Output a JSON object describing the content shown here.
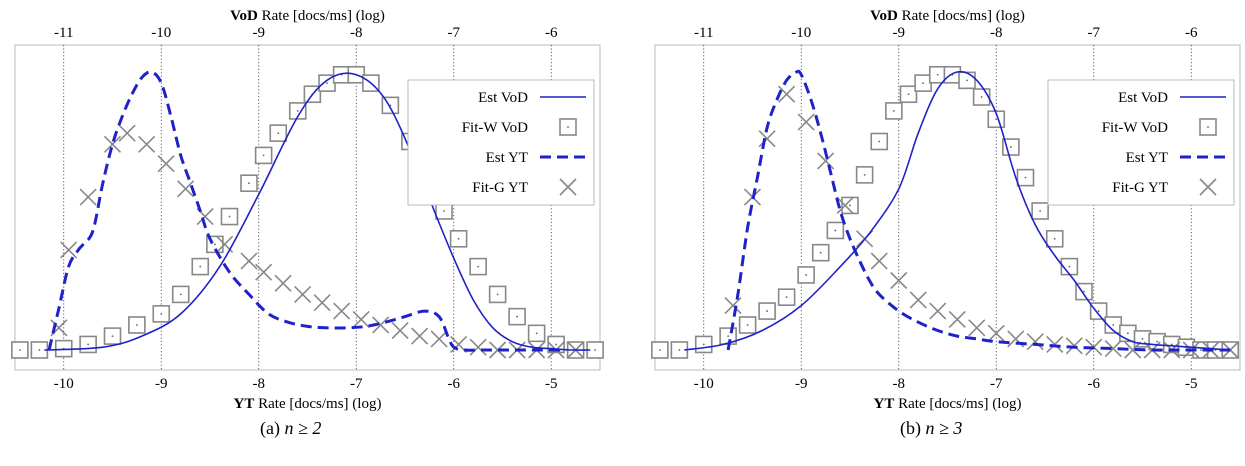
{
  "chart_data": [
    {
      "type": "line",
      "caption_label": "(a)",
      "caption_math": "n ≥ 2",
      "x_top_axis": {
        "bold": "VoD",
        "rest": "Rate [docs/ms] (log)",
        "ticks": [
          -11,
          -10,
          -9,
          -8,
          -7,
          -6
        ],
        "range": [
          -11.5,
          -5.5
        ]
      },
      "x_bottom_axis": {
        "bold": "YT",
        "rest": "Rate [docs/ms] (log)",
        "ticks": [
          -10,
          -9,
          -8,
          -7,
          -6,
          -5
        ],
        "range": [
          -10.5,
          -4.5
        ]
      },
      "y_range": [
        0,
        1
      ],
      "grid": "vertical dotted lines at bottom-axis ticks",
      "legend_position": "top-right",
      "series": [
        {
          "name": "Est VoD",
          "axis": "top",
          "style": "solid",
          "x": [
            -11.2,
            -10.6,
            -10.2,
            -9.8,
            -9.4,
            -9.0,
            -8.6,
            -8.3,
            -8.0,
            -7.7,
            -7.4,
            -7.2,
            -7.0,
            -6.8,
            -6.6,
            -6.4,
            -6.2,
            -6.0,
            -5.8,
            -5.6
          ],
          "y": [
            0.0,
            0.01,
            0.05,
            0.13,
            0.3,
            0.56,
            0.84,
            0.97,
            0.99,
            0.9,
            0.68,
            0.5,
            0.33,
            0.18,
            0.08,
            0.03,
            0.01,
            0.005,
            0.0,
            0.0
          ]
        },
        {
          "name": "Fit-W VoD",
          "axis": "top",
          "style": "square-dot",
          "x": [
            -11.45,
            -11.25,
            -11.0,
            -10.75,
            -10.5,
            -10.25,
            -10.0,
            -9.8,
            -9.6,
            -9.45,
            -9.3,
            -9.1,
            -8.95,
            -8.8,
            -8.6,
            -8.45,
            -8.3,
            -8.15,
            -8.0,
            -7.85,
            -7.65,
            -7.45,
            -7.3,
            -7.1,
            -6.95,
            -6.75,
            -6.55,
            -6.35,
            -6.15,
            -5.95,
            -5.75,
            -5.55
          ],
          "y": [
            0.0,
            0.0,
            0.005,
            0.02,
            0.05,
            0.09,
            0.13,
            0.2,
            0.3,
            0.38,
            0.48,
            0.6,
            0.7,
            0.78,
            0.86,
            0.92,
            0.96,
            0.99,
            0.99,
            0.96,
            0.88,
            0.75,
            0.6,
            0.5,
            0.4,
            0.3,
            0.2,
            0.12,
            0.06,
            0.02,
            0.0,
            0.0
          ]
        },
        {
          "name": "Est YT",
          "axis": "bottom",
          "style": "dashed",
          "x": [
            -10.15,
            -10.05,
            -9.95,
            -9.85,
            -9.8,
            -9.7,
            -9.6,
            -9.5,
            -9.4,
            -9.3,
            -9.2,
            -9.1,
            -9.0,
            -8.9,
            -8.8,
            -8.7,
            -8.6,
            -8.5,
            -8.3,
            -8.1,
            -7.9,
            -7.7,
            -7.5,
            -7.3,
            -7.1,
            -6.9,
            -6.7,
            -6.5,
            -6.3,
            -6.15,
            -6.05,
            -6.0,
            -5.9,
            -5.7,
            -5.5,
            -5.3,
            -5.1,
            -4.9
          ],
          "y": [
            0.0,
            0.15,
            0.3,
            0.36,
            0.38,
            0.43,
            0.6,
            0.74,
            0.84,
            0.92,
            0.98,
            1.0,
            0.96,
            0.84,
            0.7,
            0.6,
            0.5,
            0.4,
            0.28,
            0.2,
            0.13,
            0.1,
            0.085,
            0.08,
            0.08,
            0.085,
            0.1,
            0.12,
            0.14,
            0.12,
            0.04,
            0.01,
            0.0,
            0.0,
            0.0,
            0.0,
            0.0,
            0.0
          ]
        },
        {
          "name": "Fit-G YT",
          "axis": "bottom",
          "style": "cross",
          "x": [
            -10.05,
            -9.95,
            -9.75,
            -9.5,
            -9.35,
            -9.15,
            -8.95,
            -8.75,
            -8.55,
            -8.35,
            -8.1,
            -7.95,
            -7.75,
            -7.55,
            -7.35,
            -7.15,
            -6.95,
            -6.75,
            -6.55,
            -6.35,
            -6.15,
            -5.95,
            -5.75,
            -5.55,
            -5.35,
            -5.15,
            -4.95,
            -4.75
          ],
          "y": [
            0.08,
            0.36,
            0.55,
            0.74,
            0.78,
            0.74,
            0.67,
            0.58,
            0.48,
            0.38,
            0.32,
            0.28,
            0.24,
            0.2,
            0.17,
            0.14,
            0.11,
            0.09,
            0.07,
            0.05,
            0.04,
            0.02,
            0.01,
            0.0,
            0.0,
            0.0,
            0.0,
            0.0
          ]
        }
      ]
    },
    {
      "type": "line",
      "caption_label": "(b)",
      "caption_math": "n ≥ 3",
      "x_top_axis": {
        "bold": "VoD",
        "rest": "Rate [docs/ms] (log)",
        "ticks": [
          -11,
          -10,
          -9,
          -8,
          -7,
          -6
        ],
        "range": [
          -11.5,
          -5.5
        ]
      },
      "x_bottom_axis": {
        "bold": "YT",
        "rest": "Rate [docs/ms] (log)",
        "ticks": [
          -10,
          -9,
          -8,
          -7,
          -6,
          -5
        ],
        "range": [
          -10.5,
          -4.5
        ]
      },
      "y_range": [
        0,
        1
      ],
      "grid": "vertical dotted lines at bottom-axis ticks",
      "legend_position": "top-right",
      "series": [
        {
          "name": "Est VoD",
          "axis": "top",
          "style": "solid",
          "x": [
            -11.2,
            -10.8,
            -10.4,
            -10.0,
            -9.6,
            -9.3,
            -9.0,
            -8.8,
            -8.6,
            -8.4,
            -8.2,
            -8.0,
            -7.8,
            -7.6,
            -7.4,
            -7.2,
            -7.0,
            -6.8,
            -6.6,
            -6.4,
            -6.2,
            -6.0,
            -5.8,
            -5.6
          ],
          "y": [
            0.0,
            0.02,
            0.07,
            0.16,
            0.3,
            0.42,
            0.58,
            0.78,
            0.94,
            1.0,
            0.97,
            0.85,
            0.62,
            0.45,
            0.34,
            0.25,
            0.15,
            0.07,
            0.03,
            0.02,
            0.015,
            0.01,
            0.005,
            0.0
          ]
        },
        {
          "name": "Fit-W VoD",
          "axis": "top",
          "style": "square-dot",
          "x": [
            -11.45,
            -11.25,
            -11.0,
            -10.75,
            -10.55,
            -10.35,
            -10.15,
            -9.95,
            -9.8,
            -9.65,
            -9.5,
            -9.35,
            -9.2,
            -9.05,
            -8.9,
            -8.75,
            -8.6,
            -8.45,
            -8.3,
            -8.15,
            -8.0,
            -7.85,
            -7.7,
            -7.55,
            -7.4,
            -7.25,
            -7.1,
            -6.95,
            -6.8,
            -6.65,
            -6.5,
            -6.35,
            -6.2,
            -6.05,
            -5.9,
            -5.75,
            -5.6
          ],
          "y": [
            0.0,
            0.0,
            0.02,
            0.05,
            0.09,
            0.14,
            0.19,
            0.27,
            0.35,
            0.43,
            0.52,
            0.63,
            0.75,
            0.86,
            0.92,
            0.96,
            0.99,
            0.99,
            0.97,
            0.91,
            0.83,
            0.73,
            0.62,
            0.5,
            0.4,
            0.3,
            0.21,
            0.14,
            0.09,
            0.06,
            0.04,
            0.03,
            0.02,
            0.01,
            0.0,
            0.0,
            0.0
          ]
        },
        {
          "name": "Est YT",
          "axis": "bottom",
          "style": "dashed",
          "x": [
            -9.75,
            -9.65,
            -9.55,
            -9.45,
            -9.35,
            -9.25,
            -9.15,
            -9.05,
            -9.0,
            -8.9,
            -8.8,
            -8.7,
            -8.6,
            -8.5,
            -8.4,
            -8.3,
            -8.2,
            -8.0,
            -7.8,
            -7.6,
            -7.4,
            -7.2,
            -7.0,
            -6.6,
            -6.2,
            -5.8,
            -5.4,
            -5.0,
            -4.6
          ],
          "y": [
            0.0,
            0.2,
            0.44,
            0.62,
            0.8,
            0.9,
            0.97,
            1.0,
            0.99,
            0.9,
            0.78,
            0.64,
            0.5,
            0.4,
            0.32,
            0.25,
            0.2,
            0.14,
            0.1,
            0.07,
            0.05,
            0.04,
            0.03,
            0.02,
            0.01,
            0.005,
            0.0,
            0.0,
            0.0
          ]
        },
        {
          "name": "Fit-G YT",
          "axis": "bottom",
          "style": "cross",
          "x": [
            -9.7,
            -9.5,
            -9.35,
            -9.15,
            -8.95,
            -8.75,
            -8.55,
            -8.35,
            -8.2,
            -8.0,
            -7.8,
            -7.6,
            -7.4,
            -7.2,
            -7.0,
            -6.8,
            -6.6,
            -6.4,
            -6.2,
            -6.0,
            -5.8,
            -5.6,
            -5.4,
            -5.2,
            -5.0,
            -4.8,
            -4.6
          ],
          "y": [
            0.16,
            0.55,
            0.76,
            0.92,
            0.82,
            0.68,
            0.52,
            0.4,
            0.32,
            0.25,
            0.18,
            0.14,
            0.11,
            0.08,
            0.06,
            0.04,
            0.03,
            0.02,
            0.015,
            0.01,
            0.005,
            0.0,
            0.0,
            0.0,
            0.0,
            0.0,
            0.0
          ]
        }
      ]
    }
  ],
  "colors": {
    "estimate": "#1f22c9",
    "fit": "#888888",
    "grid": "#333333",
    "frame": "#bbbbbb"
  }
}
